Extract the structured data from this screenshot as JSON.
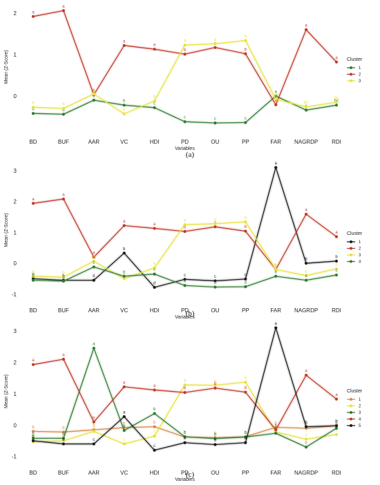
{
  "chart_data": [
    {
      "type": "line",
      "panel_label": "(a)",
      "xlabel": "Variables",
      "ylabel": "Mean (Z-Score)",
      "categories": [
        "BD",
        "BUF",
        "AAR",
        "VC",
        "HDI",
        "PD",
        "OU",
        "PP",
        "FAR",
        "NAGRDP",
        "RDI"
      ],
      "yticks": [
        0,
        1,
        2
      ],
      "ylim": [
        -0.75,
        2.15
      ],
      "grid": false,
      "legend": {
        "title": "Cluster",
        "position": "right"
      },
      "series": [
        {
          "name": "1",
          "color": "#2e7d32",
          "values": [
            -0.42,
            -0.44,
            -0.1,
            -0.22,
            -0.28,
            -0.62,
            -0.65,
            -0.64,
            0.0,
            -0.34,
            -0.22
          ],
          "labels": [
            "b",
            "b",
            "c",
            "b",
            "c",
            "c",
            "c",
            "c",
            "a",
            "c",
            "bc"
          ]
        },
        {
          "name": "2",
          "color": "#c0392b",
          "values": [
            1.92,
            2.06,
            0.03,
            1.22,
            1.13,
            1.01,
            1.17,
            1.02,
            -0.21,
            1.6,
            0.82
          ],
          "labels": [
            "a",
            "a",
            "b",
            "a",
            "a",
            "b",
            "a",
            "b",
            "b",
            "a",
            "a"
          ]
        },
        {
          "name": "3",
          "color": "#e8e23a",
          "values": [
            -0.27,
            -0.3,
            0.05,
            -0.43,
            -0.12,
            1.23,
            1.26,
            1.34,
            -0.08,
            -0.26,
            -0.15
          ],
          "labels": [
            "b",
            "b",
            "a",
            "b",
            "b",
            "a",
            "a",
            "a",
            "ab",
            "bc",
            "bc"
          ]
        }
      ]
    },
    {
      "type": "line",
      "panel_label": "(b)",
      "xlabel": "Variables",
      "ylabel": "Mean (Z-Score)",
      "categories": [
        "BD",
        "BUF",
        "AAR",
        "VC",
        "HDI",
        "PD",
        "OU",
        "PP",
        "FAR",
        "NAGRDP",
        "RDI"
      ],
      "yticks": [
        -1,
        0,
        1,
        2,
        3
      ],
      "ylim": [
        -1.05,
        3.2
      ],
      "grid": false,
      "legend": {
        "title": "Cluster",
        "position": "right"
      },
      "series": [
        {
          "name": "1",
          "color": "#1a1a1a",
          "values": [
            -0.5,
            -0.55,
            -0.55,
            0.33,
            -0.78,
            -0.52,
            -0.57,
            -0.51,
            3.1,
            0.0,
            0.07
          ],
          "labels": [
            "b",
            "b",
            "d",
            "b",
            "d",
            "c",
            "c",
            "c",
            "a",
            "b",
            "b"
          ]
        },
        {
          "name": "2",
          "color": "#c0392b",
          "values": [
            1.94,
            2.08,
            0.2,
            1.22,
            1.13,
            1.03,
            1.18,
            1.04,
            -0.2,
            1.59,
            0.86
          ],
          "labels": [
            "a",
            "a",
            "a",
            "a",
            "a",
            "b",
            "a",
            "b",
            "b",
            "a",
            "a"
          ]
        },
        {
          "name": "3",
          "color": "#e8e23a",
          "values": [
            -0.42,
            -0.45,
            0.07,
            -0.5,
            -0.15,
            1.25,
            1.28,
            1.34,
            -0.2,
            -0.4,
            -0.18
          ],
          "labels": [
            "b",
            "b",
            "bc",
            "b",
            "b",
            "a",
            "a",
            "a",
            "b",
            "c",
            "c"
          ]
        },
        {
          "name": "4",
          "color": "#2e7d32",
          "values": [
            -0.55,
            -0.58,
            -0.12,
            -0.42,
            -0.35,
            -0.72,
            -0.77,
            -0.76,
            -0.42,
            -0.55,
            -0.38
          ],
          "labels": [
            "b",
            "b",
            "c",
            "b",
            "c",
            "d",
            "d",
            "d",
            "b",
            "c",
            "c"
          ]
        }
      ]
    },
    {
      "type": "line",
      "panel_label": "(c)",
      "xlabel": "Variables",
      "ylabel": "Mean (Z-Score)",
      "categories": [
        "BD",
        "BUF",
        "AAR",
        "VC",
        "HDI",
        "PD",
        "OU",
        "PP",
        "FAR",
        "NAGRDP",
        "RDI"
      ],
      "yticks": [
        -1,
        0,
        1,
        2,
        3
      ],
      "ylim": [
        -1.05,
        3.2
      ],
      "grid": false,
      "legend": {
        "title": "Cluster",
        "position": "right"
      },
      "series": [
        {
          "name": "1",
          "color": "#d9894a",
          "values": [
            -0.2,
            -0.22,
            -0.15,
            -0.08,
            -0.05,
            -0.38,
            -0.4,
            -0.37,
            -0.07,
            -0.1,
            -0.02
          ],
          "labels": [
            "b",
            "b",
            "b",
            "b",
            "b",
            "b",
            "b",
            "b",
            "b",
            "b",
            "b"
          ]
        },
        {
          "name": "2",
          "color": "#e8e23a",
          "values": [
            -0.53,
            -0.5,
            -0.2,
            -0.6,
            -0.35,
            1.28,
            1.27,
            1.37,
            -0.22,
            -0.45,
            -0.3
          ],
          "labels": [
            "b",
            "b",
            "b",
            "c",
            "c",
            "a",
            "a",
            "a",
            "b",
            "c",
            "c"
          ]
        },
        {
          "name": "3",
          "color": "#2e7d32",
          "values": [
            -0.42,
            -0.42,
            2.45,
            -0.17,
            0.37,
            -0.37,
            -0.43,
            -0.38,
            -0.26,
            -0.7,
            -0.1
          ],
          "labels": [
            "b",
            "b",
            "a",
            "b",
            "b",
            "b",
            "b",
            "b",
            "b",
            "c",
            "b"
          ]
        },
        {
          "name": "4",
          "color": "#c0392b",
          "values": [
            1.93,
            2.1,
            0.1,
            1.22,
            1.12,
            1.04,
            1.18,
            1.05,
            -0.15,
            1.59,
            0.83
          ],
          "labels": [
            "a",
            "a",
            "b",
            "a",
            "a",
            "b",
            "b",
            "b",
            "b",
            "a",
            "a"
          ]
        },
        {
          "name": "5",
          "color": "#1a1a1a",
          "values": [
            -0.5,
            -0.6,
            -0.6,
            0.27,
            -0.8,
            -0.56,
            -0.62,
            -0.56,
            3.1,
            -0.05,
            -0.02
          ],
          "labels": [
            "b",
            "b",
            "c",
            "a",
            "c",
            "b",
            "b",
            "b",
            "a",
            "b",
            "b"
          ]
        }
      ]
    }
  ]
}
